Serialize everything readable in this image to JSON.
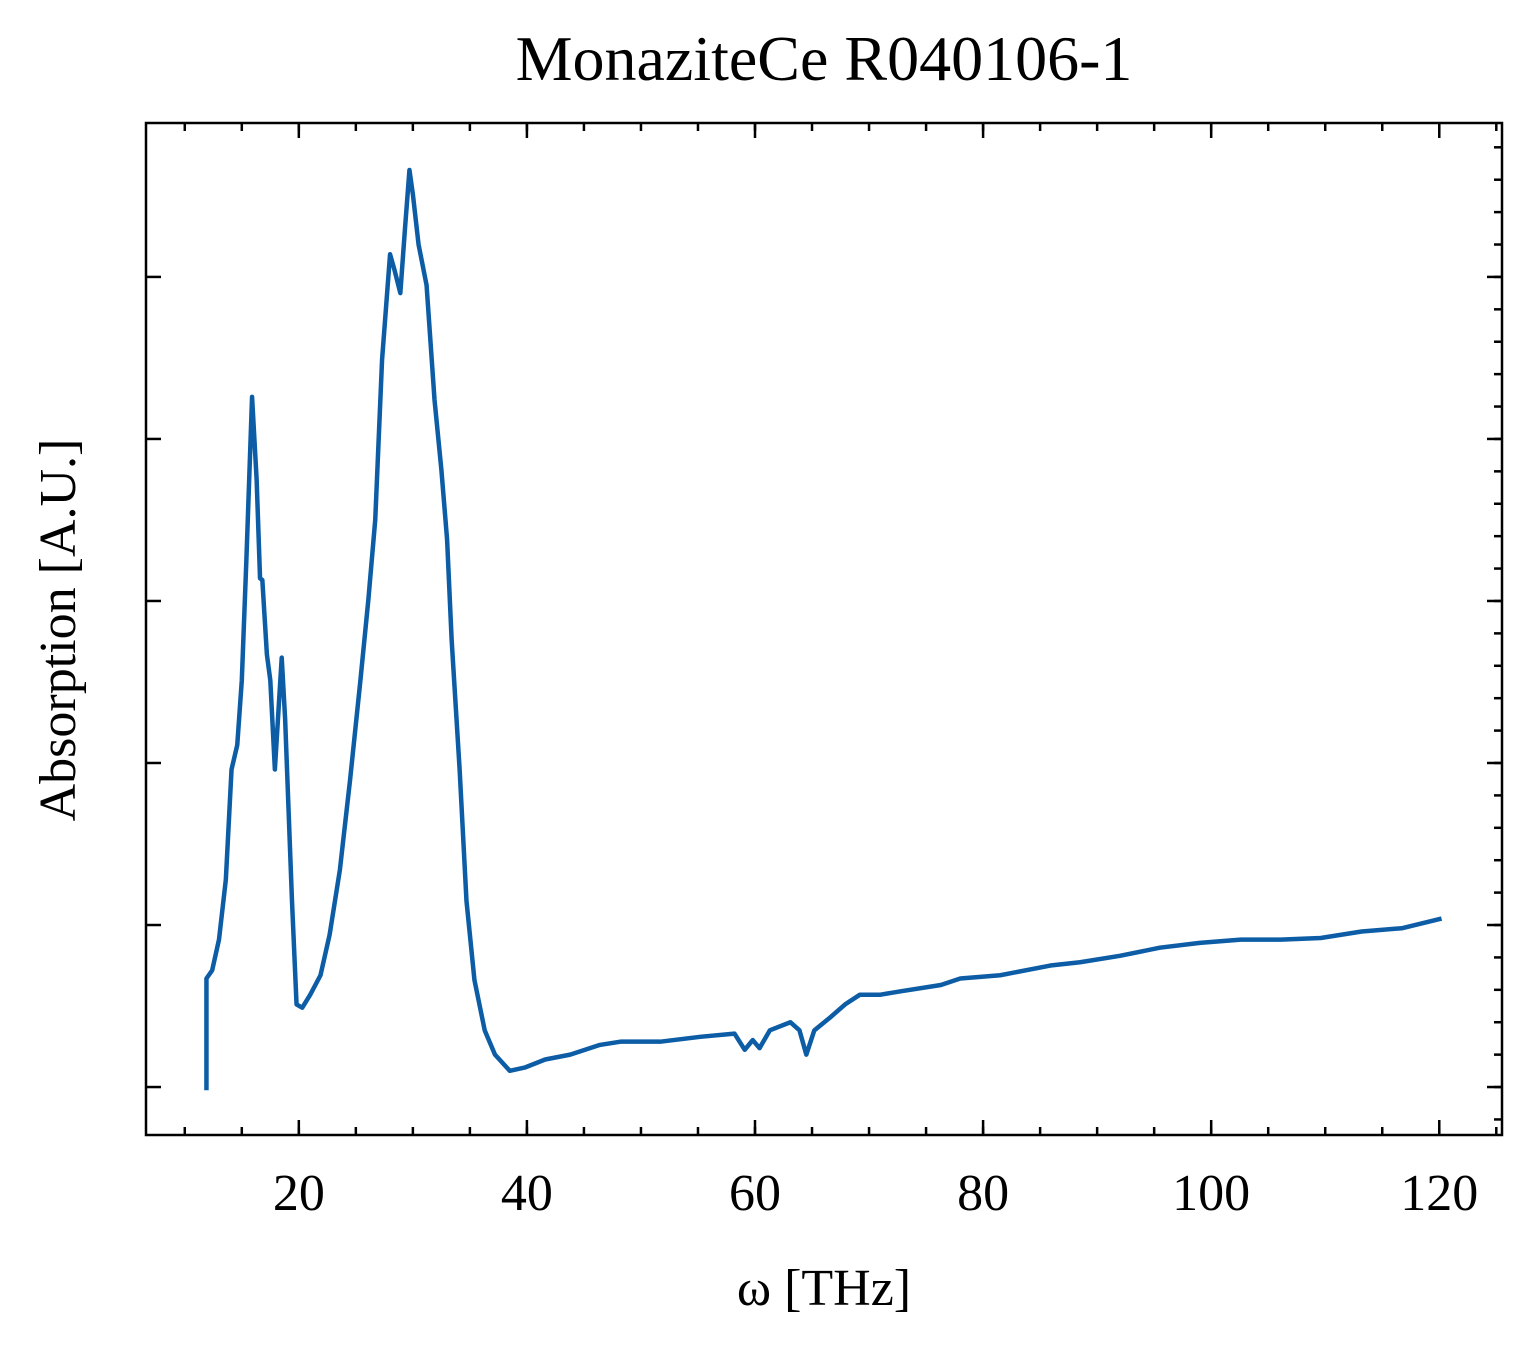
{
  "chart_data": {
    "type": "line",
    "title": "MonaziteCe R040106-1",
    "xlabel": "ω [THz]",
    "ylabel": "Absorption [A.U.]",
    "color": "#0c5da5",
    "x": [
      11.9,
      11.9,
      12.4,
      13.0,
      13.6,
      14.1,
      14.6,
      15.0,
      15.4,
      15.9,
      16.3,
      16.6,
      16.8,
      17.2,
      17.5,
      17.9,
      18.5,
      18.8,
      19.4,
      19.8,
      20.3,
      21.0,
      21.9,
      22.7,
      23.6,
      24.5,
      25.4,
      26.1,
      26.7,
      27.3,
      28.0,
      28.4,
      28.9,
      29.3,
      29.7,
      30.0,
      30.5,
      31.2,
      31.9,
      32.5,
      33.0,
      33.4,
      34.1,
      34.7,
      35.4,
      36.3,
      37.2,
      38.5,
      39.8,
      41.6,
      43.8,
      46.4,
      48.2,
      51.7,
      55.2,
      58.2,
      59.1,
      59.8,
      60.4,
      61.3,
      63.1,
      63.9,
      64.5,
      65.2,
      66.6,
      67.9,
      69.2,
      71.0,
      72.7,
      76.3,
      78.0,
      81.5,
      85.9,
      88.5,
      92.0,
      95.5,
      99.0,
      102.6,
      106.1,
      109.6,
      113.2,
      116.7,
      120.2
    ],
    "values": [
      -0.02,
      0.67,
      0.72,
      0.91,
      1.28,
      1.96,
      2.11,
      2.51,
      3.25,
      4.26,
      3.75,
      3.14,
      3.13,
      2.67,
      2.51,
      1.96,
      2.65,
      2.27,
      1.15,
      0.51,
      0.49,
      0.57,
      0.69,
      0.94,
      1.34,
      1.9,
      2.51,
      3.01,
      3.5,
      4.49,
      5.14,
      5.04,
      4.9,
      5.29,
      5.66,
      5.51,
      5.2,
      4.95,
      4.24,
      3.81,
      3.38,
      2.76,
      1.96,
      1.15,
      0.66,
      0.35,
      0.2,
      0.1,
      0.12,
      0.17,
      0.2,
      0.26,
      0.28,
      0.28,
      0.31,
      0.33,
      0.23,
      0.29,
      0.24,
      0.35,
      0.4,
      0.35,
      0.2,
      0.35,
      0.43,
      0.51,
      0.57,
      0.57,
      0.59,
      0.63,
      0.67,
      0.69,
      0.75,
      0.77,
      0.81,
      0.86,
      0.89,
      0.91,
      0.91,
      0.92,
      0.96,
      0.98,
      1.04
    ],
    "xlim": [
      6.6,
      125.5
    ],
    "xticks": [
      20,
      40,
      60,
      80,
      100,
      120
    ],
    "ylim": [
      -0.296,
      5.95
    ],
    "yticks": [
      0,
      1,
      2,
      3,
      4,
      5
    ]
  }
}
